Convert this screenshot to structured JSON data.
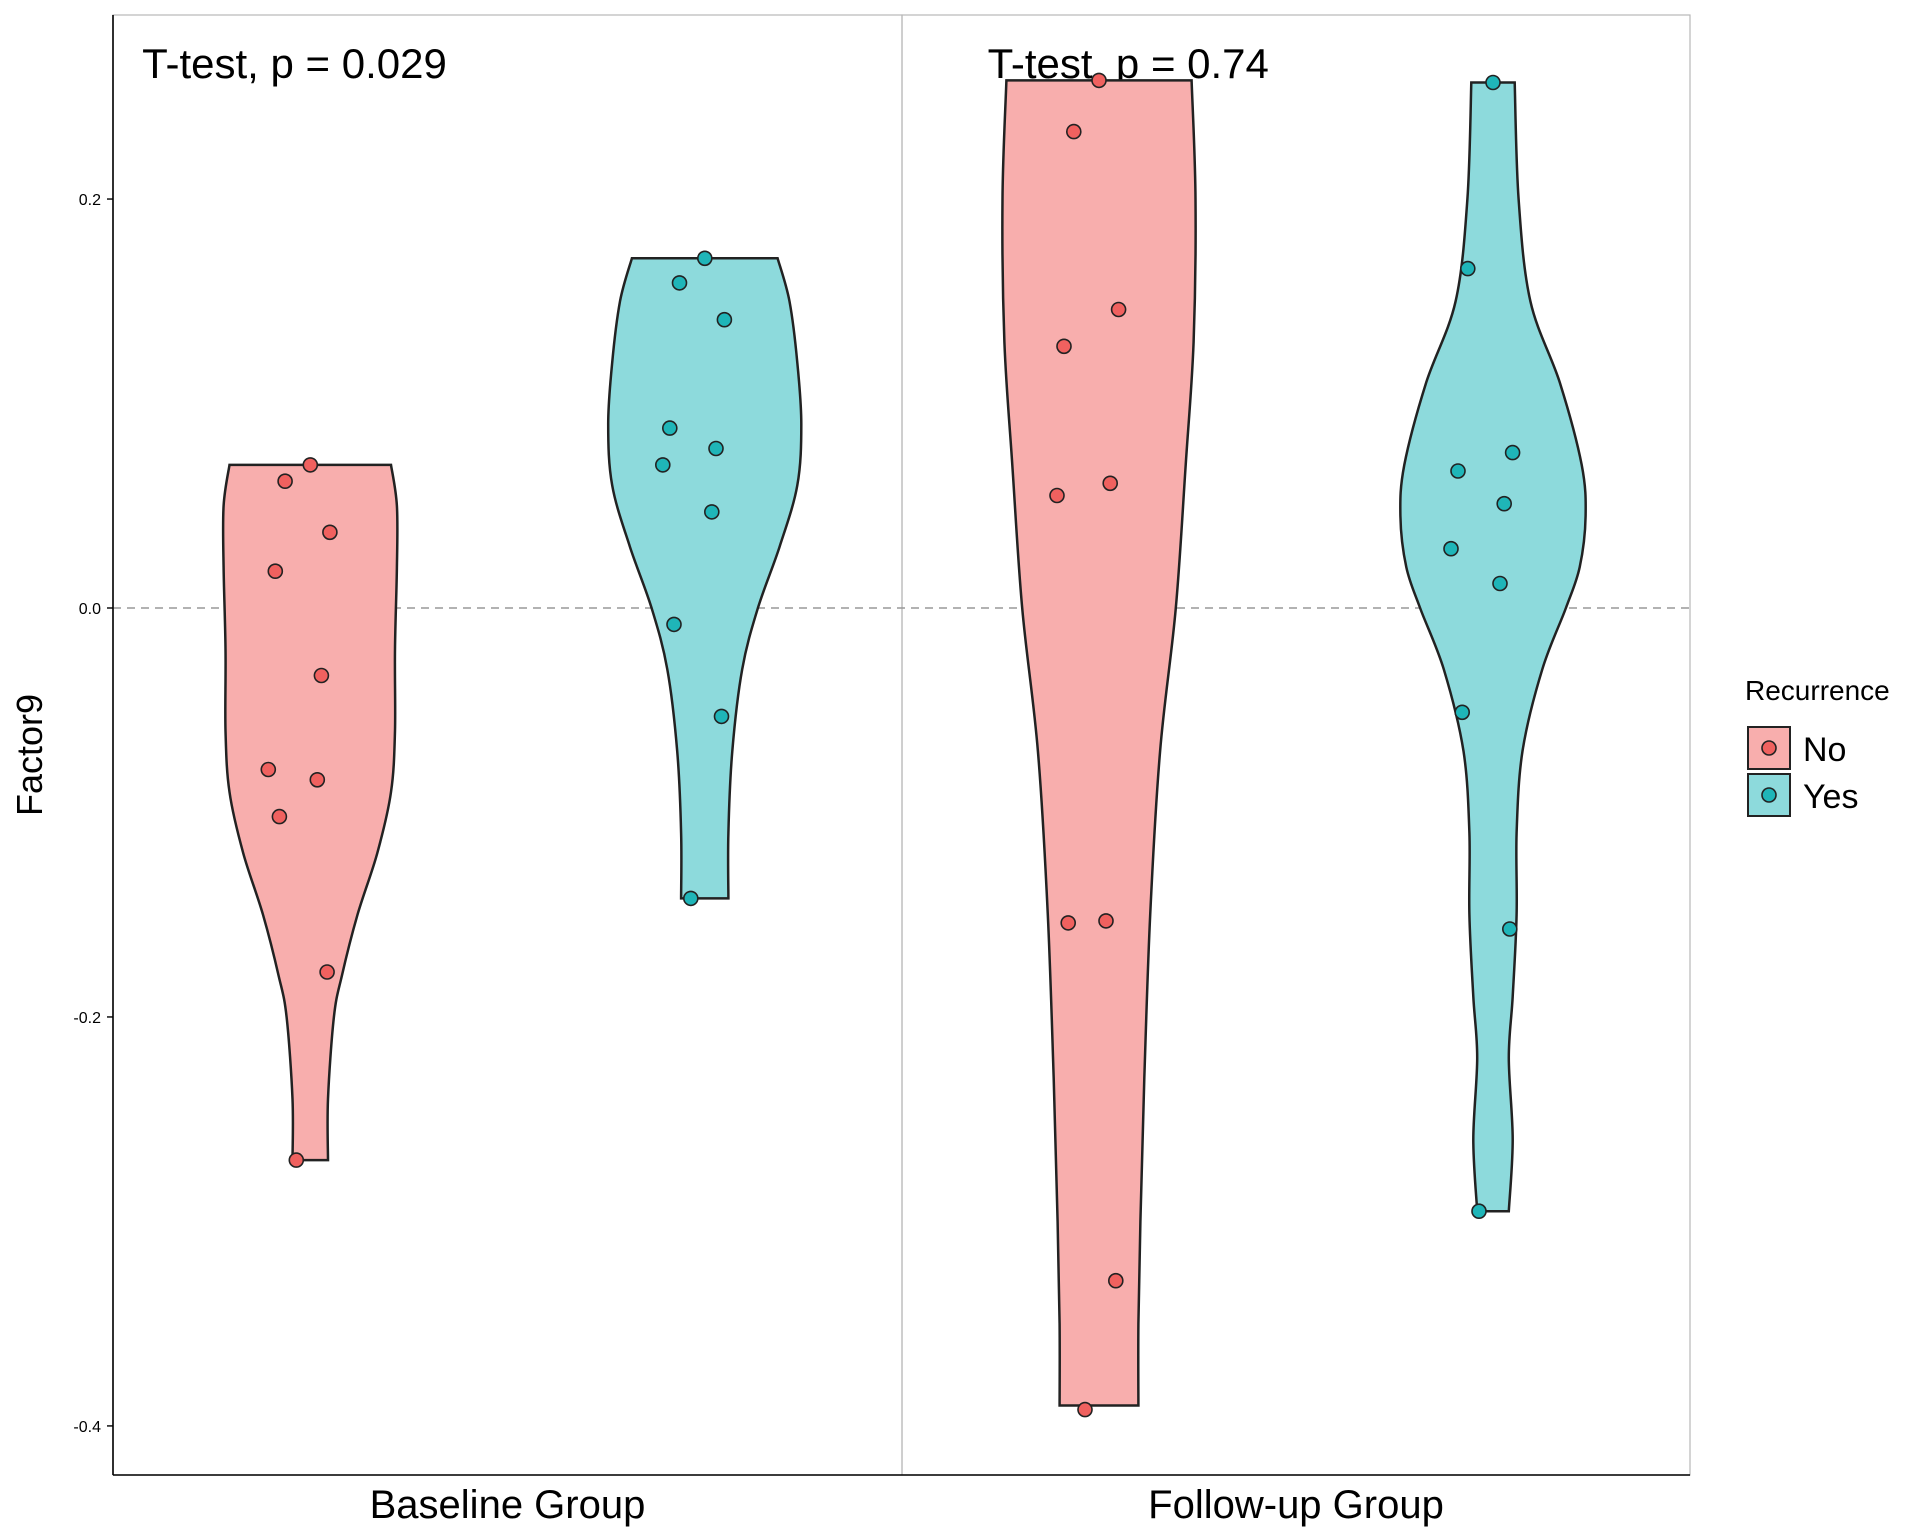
{
  "chart_data": {
    "type": "violin",
    "ylabel": "Factor9",
    "xlabel": "",
    "ylim": [
      -0.424,
      0.29
    ],
    "y_ticks": [
      0.2,
      0.0,
      -0.2,
      -0.4
    ],
    "y_tick_labels": [
      "0.2",
      "0.0",
      "-0.2",
      "-0.4"
    ],
    "reference_line": 0,
    "grid": false,
    "legend": {
      "title": "Recurrence",
      "placement": "right",
      "entries": [
        {
          "label": "No",
          "fill": "#f8aead",
          "point": "#f0615f"
        },
        {
          "label": "Yes",
          "fill": "#8ddadc",
          "point": "#1fb5b8"
        }
      ]
    },
    "panels": [
      {
        "label": "Baseline Group",
        "annotation": "T-test, p = 0.029",
        "series": [
          {
            "name": "No",
            "values": [
              0.07,
              0.062,
              0.037,
              0.018,
              -0.033,
              -0.079,
              -0.084,
              -0.102,
              -0.178,
              -0.27
            ],
            "density": [
              [
                0.07,
                0.41
              ],
              [
                0.05,
                0.44
              ],
              [
                0.02,
                0.44
              ],
              [
                -0.02,
                0.43
              ],
              [
                -0.06,
                0.43
              ],
              [
                -0.09,
                0.41
              ],
              [
                -0.12,
                0.34
              ],
              [
                -0.15,
                0.24
              ],
              [
                -0.18,
                0.16
              ],
              [
                -0.2,
                0.12
              ],
              [
                -0.24,
                0.09
              ],
              [
                -0.27,
                0.09
              ]
            ]
          },
          {
            "name": "Yes",
            "values": [
              0.171,
              0.159,
              0.141,
              0.088,
              0.078,
              0.07,
              0.047,
              -0.008,
              -0.053,
              -0.142
            ],
            "density": [
              [
                0.171,
                0.37
              ],
              [
                0.15,
                0.43
              ],
              [
                0.12,
                0.47
              ],
              [
                0.09,
                0.49
              ],
              [
                0.06,
                0.47
              ],
              [
                0.03,
                0.38
              ],
              [
                0.0,
                0.27
              ],
              [
                -0.03,
                0.19
              ],
              [
                -0.07,
                0.14
              ],
              [
                -0.11,
                0.12
              ],
              [
                -0.142,
                0.12
              ]
            ]
          }
        ]
      },
      {
        "label": "Follow-up Group",
        "annotation": "T-test, p = 0.74",
        "series": [
          {
            "name": "No",
            "values": [
              0.258,
              0.233,
              0.146,
              0.128,
              0.061,
              0.055,
              -0.153,
              -0.154,
              -0.329,
              -0.392
            ],
            "density": [
              [
                0.258,
                0.47
              ],
              [
                0.2,
                0.49
              ],
              [
                0.13,
                0.48
              ],
              [
                0.07,
                0.44
              ],
              [
                0.0,
                0.39
              ],
              [
                -0.07,
                0.31
              ],
              [
                -0.15,
                0.26
              ],
              [
                -0.23,
                0.23
              ],
              [
                -0.3,
                0.21
              ],
              [
                -0.35,
                0.2
              ],
              [
                -0.39,
                0.2
              ]
            ]
          },
          {
            "name": "Yes",
            "values": [
              0.257,
              0.166,
              0.076,
              0.067,
              0.051,
              0.029,
              0.012,
              -0.051,
              -0.157,
              -0.295
            ],
            "density": [
              [
                0.257,
                0.11
              ],
              [
                0.2,
                0.13
              ],
              [
                0.15,
                0.19
              ],
              [
                0.11,
                0.34
              ],
              [
                0.07,
                0.45
              ],
              [
                0.045,
                0.47
              ],
              [
                0.02,
                0.44
              ],
              [
                0.0,
                0.37
              ],
              [
                -0.03,
                0.25
              ],
              [
                -0.07,
                0.15
              ],
              [
                -0.11,
                0.12
              ],
              [
                -0.15,
                0.12
              ],
              [
                -0.19,
                0.1
              ],
              [
                -0.22,
                0.08
              ],
              [
                -0.26,
                0.1
              ],
              [
                -0.295,
                0.08
              ]
            ]
          }
        ]
      }
    ]
  }
}
